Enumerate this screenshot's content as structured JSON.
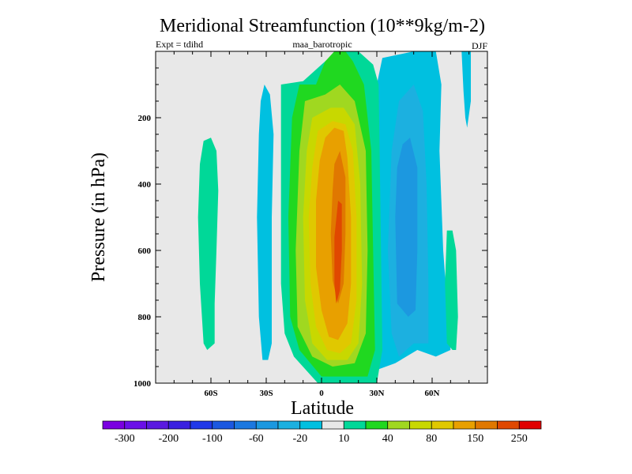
{
  "chart_data": {
    "type": "heatmap",
    "plot_style": "filled-contour",
    "title": "Meridional Streamfunction (10**9kg/m-2)",
    "subtitle_left": "Expt = tdihd",
    "subtitle_center": "maa_barotropic",
    "subtitle_right": "DJF",
    "xlabel": "Latitude",
    "ylabel": "Pressure (in hPa)",
    "xlim": [
      -90,
      90
    ],
    "ylim": [
      1000,
      0
    ],
    "x_ticks": [
      {
        "value": -60,
        "label": "60S"
      },
      {
        "value": -30,
        "label": "30S"
      },
      {
        "value": 0,
        "label": "0"
      },
      {
        "value": 30,
        "label": "30N"
      },
      {
        "value": 60,
        "label": "60N"
      }
    ],
    "y_ticks": [
      {
        "value": 200,
        "label": "200"
      },
      {
        "value": 400,
        "label": "400"
      },
      {
        "value": 600,
        "label": "600"
      },
      {
        "value": 800,
        "label": "800"
      },
      {
        "value": 1000,
        "label": "1000"
      }
    ],
    "missing_color": "#e8e8e8",
    "levels": [
      {
        "value": -300,
        "color": "#7a00e0"
      },
      {
        "value": -250,
        "color": "#6a10e8"
      },
      {
        "value": -200,
        "color": "#5a1ae0"
      },
      {
        "value": -150,
        "color": "#3a20e0"
      },
      {
        "value": -100,
        "color": "#2038e8"
      },
      {
        "value": -80,
        "color": "#1c58e0"
      },
      {
        "value": -60,
        "color": "#1c78e0"
      },
      {
        "value": -40,
        "color": "#1c98e0"
      },
      {
        "value": -20,
        "color": "#1cb0e0"
      },
      {
        "value": 0,
        "color": "#00c0e0"
      },
      {
        "value": 10,
        "color": "#e8e8e8"
      },
      {
        "value": 20,
        "color": "#00d898"
      },
      {
        "value": 40,
        "color": "#20d820"
      },
      {
        "value": 60,
        "color": "#a0d820"
      },
      {
        "value": 80,
        "color": "#c8d800"
      },
      {
        "value": 100,
        "color": "#e0c800"
      },
      {
        "value": 150,
        "color": "#e8a000"
      },
      {
        "value": 200,
        "color": "#e07800"
      },
      {
        "value": 250,
        "color": "#e04800"
      },
      {
        "value": 300,
        "color": "#e00000"
      }
    ],
    "colorbar_labels": [
      "-300",
      "-200",
      "-100",
      "-60",
      "-20",
      "10",
      "40",
      "80",
      "150",
      "250"
    ],
    "features": [
      {
        "name": "sh-weak-cell-60S",
        "sign": "positive",
        "level": 20,
        "lat_range": [
          -66,
          -58
        ],
        "pressure_range": [
          260,
          900
        ]
      },
      {
        "name": "sh-negative-cell-30S",
        "sign": "negative",
        "level": 0,
        "lat_range": [
          -35,
          -26
        ],
        "pressure_range": [
          100,
          930
        ]
      },
      {
        "name": "tropical-hadley-cell",
        "sign": "positive",
        "peak_value": 280,
        "peak_lat": 10,
        "peak_pressure": 650,
        "lat_range": [
          -20,
          32
        ],
        "pressure_range": [
          0,
          1000
        ]
      },
      {
        "name": "nh-negative-cell-45N",
        "sign": "negative",
        "peak_value": -80,
        "peak_lat": 45,
        "lat_range": [
          32,
          75
        ],
        "pressure_range": [
          0,
          960
        ]
      },
      {
        "name": "nh-weak-cell-70N",
        "sign": "positive",
        "level": 20,
        "lat_range": [
          66,
          74
        ],
        "pressure_range": [
          540,
          900
        ]
      },
      {
        "name": "polar-negative-strip",
        "sign": "negative",
        "level": 0,
        "lat_range": [
          76,
          81
        ],
        "pressure_range": [
          0,
          230
        ]
      }
    ]
  }
}
